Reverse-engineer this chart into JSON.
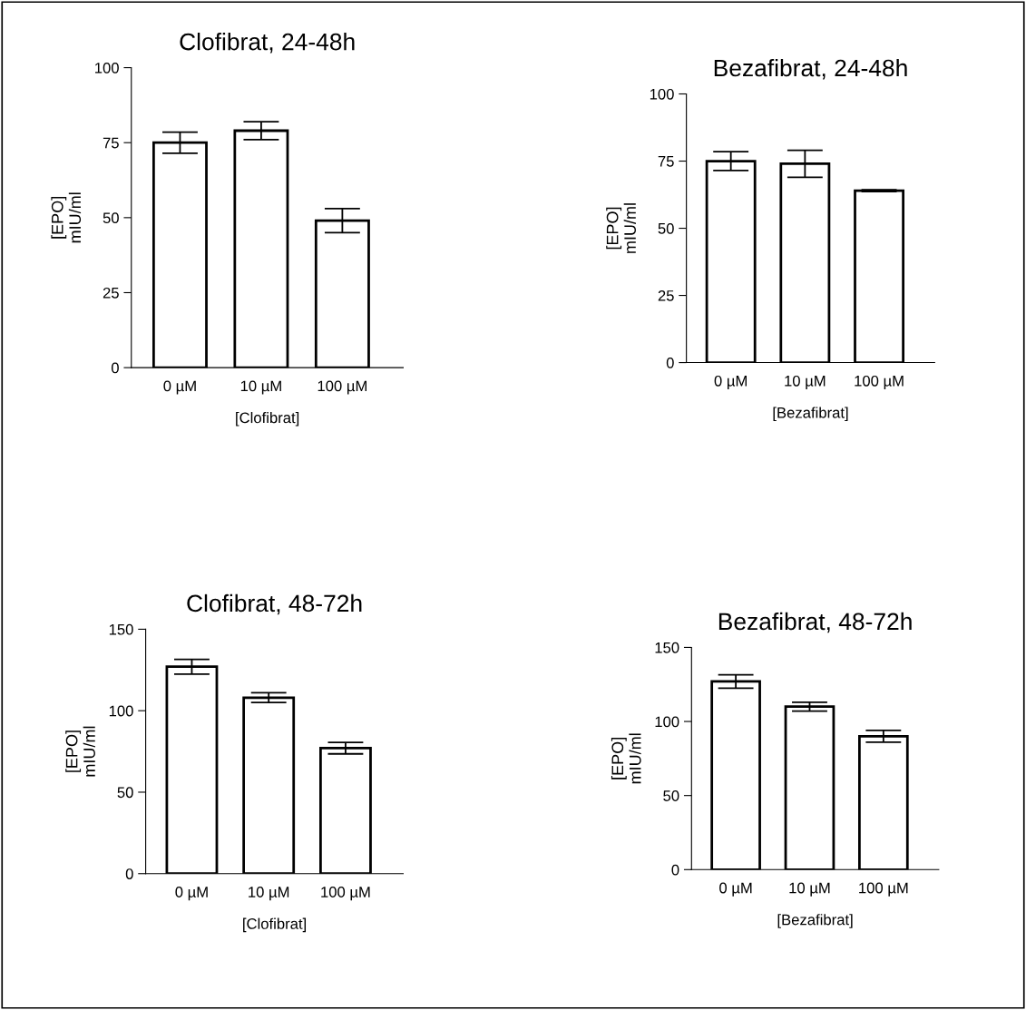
{
  "chart_data": [
    {
      "type": "bar",
      "title": "Clofibrat, 24-48h",
      "xlabel": "[Clofibrat]",
      "ylabel": "[EPO]\nmIU/ml",
      "categories": [
        "0 µM",
        "10 µM",
        "100 µM"
      ],
      "values": [
        75,
        79,
        49
      ],
      "errors": [
        3.5,
        3,
        4
      ],
      "color": "#ffffff",
      "ylim": [
        0,
        100
      ],
      "yticks": [
        0,
        25,
        50,
        75,
        100
      ],
      "grid": false,
      "legend": false
    },
    {
      "type": "bar",
      "title": "Bezafibrat, 24-48h",
      "xlabel": "[Bezafibrat]",
      "ylabel": "[EPO]\nmIU/ml",
      "categories": [
        "0 µM",
        "10 µM",
        "100 µM"
      ],
      "values": [
        75,
        74,
        64
      ],
      "errors": [
        3.5,
        5,
        0.3
      ],
      "color": "#ffffff",
      "ylim": [
        0,
        100
      ],
      "yticks": [
        0,
        25,
        50,
        75,
        100
      ],
      "grid": false,
      "legend": false
    },
    {
      "type": "bar",
      "title": "Clofibrat, 48-72h",
      "xlabel": "[Clofibrat]",
      "ylabel": "[EPO]\nmIU/ml",
      "categories": [
        "0 µM",
        "10 µM",
        "100 µM"
      ],
      "values": [
        127,
        108,
        77
      ],
      "errors": [
        4.5,
        3,
        3.5
      ],
      "color": "#ffffff",
      "ylim": [
        0,
        150
      ],
      "yticks": [
        0,
        50,
        100,
        150
      ],
      "grid": false,
      "legend": false
    },
    {
      "type": "bar",
      "title": "Bezafibrat, 48-72h",
      "xlabel": "[Bezafibrat]",
      "ylabel": "[EPO]\nmIU/ml",
      "categories": [
        "0 µM",
        "10 µM",
        "100 µM"
      ],
      "values": [
        127,
        110,
        90
      ],
      "errors": [
        4.5,
        3,
        4
      ],
      "color": "#ffffff",
      "ylim": [
        0,
        150
      ],
      "yticks": [
        0,
        50,
        100,
        150
      ],
      "grid": false,
      "legend": false
    }
  ]
}
